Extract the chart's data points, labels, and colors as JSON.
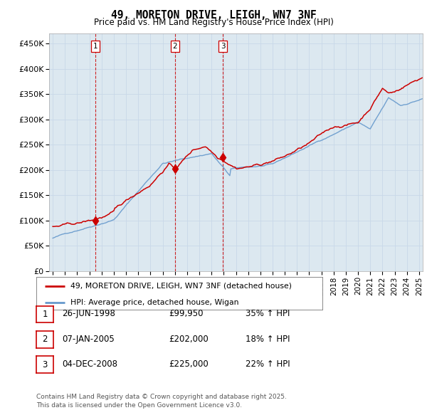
{
  "title": "49, MORETON DRIVE, LEIGH, WN7 3NF",
  "subtitle": "Price paid vs. HM Land Registry's House Price Index (HPI)",
  "legend_line1": "49, MORETON DRIVE, LEIGH, WN7 3NF (detached house)",
  "legend_line2": "HPI: Average price, detached house, Wigan",
  "footer_line1": "Contains HM Land Registry data © Crown copyright and database right 2025.",
  "footer_line2": "This data is licensed under the Open Government Licence v3.0.",
  "sale_color": "#cc0000",
  "hpi_color": "#6699cc",
  "vline_color": "#cc0000",
  "grid_color": "#c8d8e8",
  "bg_color": "#dce8f0",
  "plot_bg_color": "#dce8f0",
  "outer_bg_color": "#ffffff",
  "ylim": [
    0,
    470000
  ],
  "yticks": [
    0,
    50000,
    100000,
    150000,
    200000,
    250000,
    300000,
    350000,
    400000,
    450000
  ],
  "ytick_labels": [
    "£0",
    "£50K",
    "£100K",
    "£150K",
    "£200K",
    "£250K",
    "£300K",
    "£350K",
    "£400K",
    "£450K"
  ],
  "xlim_start": 1994.7,
  "xlim_end": 2025.3,
  "xtick_years": [
    1995,
    1996,
    1997,
    1998,
    1999,
    2000,
    2001,
    2002,
    2003,
    2004,
    2005,
    2006,
    2007,
    2008,
    2009,
    2010,
    2011,
    2012,
    2013,
    2014,
    2015,
    2016,
    2017,
    2018,
    2019,
    2020,
    2021,
    2022,
    2023,
    2024,
    2025
  ],
  "transactions": [
    {
      "num": 1,
      "date": "26-JUN-1998",
      "year": 1998.49,
      "price": 99950,
      "hpi_pct": "35% ↑ HPI"
    },
    {
      "num": 2,
      "date": "07-JAN-2005",
      "year": 2005.02,
      "price": 202000,
      "hpi_pct": "18% ↑ HPI"
    },
    {
      "num": 3,
      "date": "04-DEC-2008",
      "year": 2008.92,
      "price": 225000,
      "hpi_pct": "22% ↑ HPI"
    }
  ]
}
